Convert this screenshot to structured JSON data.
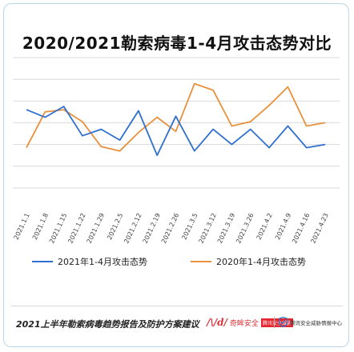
{
  "title": "2020/2021勒索病毒1-4月攻击态势对比",
  "footer": {
    "report_title": "2021上半年勒索病毒趋势报告及防护方案建议",
    "logo1_mark": "/\\/d/",
    "logo1_text": "奇眸安全",
    "logo1_badge": "腾讯安全威胁",
    "logo2_text": "腾讯安全威胁情报中心"
  },
  "colors": {
    "series_2021": "#2f6fcf",
    "series_2020": "#e8913c",
    "grid": "#d9d9d9",
    "frame": "#bcd6ea"
  },
  "chart_data": {
    "type": "line",
    "title": "2020/2021勒索病毒1-4月攻击态势对比",
    "categories": [
      "2021.1.1",
      "2021.1.8",
      "2021.1.15",
      "2021.1.22",
      "2021.1.29",
      "2021.2.5",
      "2021.2.12",
      "2021.2.19",
      "2021.2.26",
      "2021.3.5",
      "2021.3.12",
      "2021.3.19",
      "2021.3.26",
      "2021.4.2",
      "2021.4.9",
      "2021.4.16",
      "2021.4.23"
    ],
    "ylim": [
      0,
      7
    ],
    "grid": true,
    "ytick_labels_shown": false,
    "legend_position": "bottom",
    "series": [
      {
        "name": "2021年1-4月攻击态势",
        "color": "#2f6fcf",
        "values": [
          4.6,
          4.25,
          4.75,
          3.4,
          3.7,
          3.2,
          4.55,
          2.5,
          4.3,
          2.7,
          3.7,
          3.0,
          3.7,
          2.85,
          3.85,
          2.85,
          3.0
        ]
      },
      {
        "name": "2020年1-4月攻击态势",
        "color": "#e8913c",
        "values": [
          2.85,
          4.5,
          4.6,
          4.05,
          2.9,
          2.7,
          3.55,
          4.25,
          3.6,
          5.8,
          5.5,
          3.85,
          4.05,
          4.8,
          5.65,
          3.85,
          4.0
        ]
      }
    ]
  }
}
